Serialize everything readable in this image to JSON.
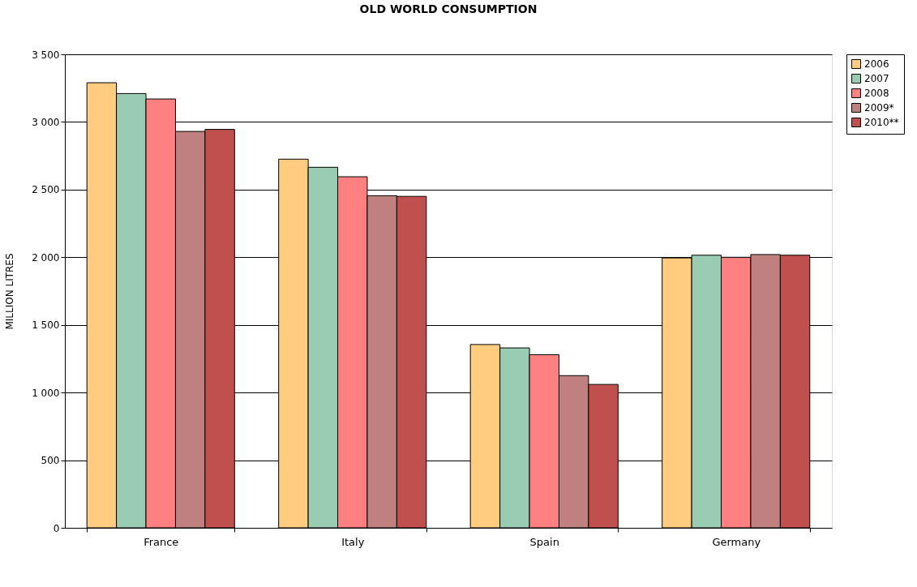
{
  "chart_data": {
    "type": "bar",
    "title": "OLD WORLD CONSUMPTION",
    "ylabel": "MILLION LITRES",
    "categories": [
      "France",
      "Italy",
      "Spain",
      "Germany"
    ],
    "series": [
      {
        "name": "2006",
        "color": "#ffcc80",
        "values": [
          3290,
          2725,
          1355,
          1995
        ]
      },
      {
        "name": "2007",
        "color": "#99ccb2",
        "values": [
          3210,
          2665,
          1330,
          2015
        ]
      },
      {
        "name": "2008",
        "color": "#ff8080",
        "values": [
          3170,
          2595,
          1280,
          2000
        ]
      },
      {
        "name": "2009*",
        "color": "#c08080",
        "values": [
          2930,
          2455,
          1125,
          2020
        ]
      },
      {
        "name": "2010**",
        "color": "#c0504d",
        "values": [
          2945,
          2450,
          1060,
          2015
        ]
      }
    ],
    "ylim": [
      0,
      3500
    ],
    "yticks": [
      0,
      500,
      {
        "value": 1000,
        "label": "1 000"
      },
      {
        "value": 1500,
        "label": "1 500"
      },
      {
        "value": 2000,
        "label": "2 000"
      },
      {
        "value": 2500,
        "label": "2 500"
      },
      {
        "value": 3000,
        "label": "3 000"
      },
      {
        "value": 3500,
        "label": "3 500"
      }
    ],
    "grid": "y",
    "legend": "right"
  }
}
